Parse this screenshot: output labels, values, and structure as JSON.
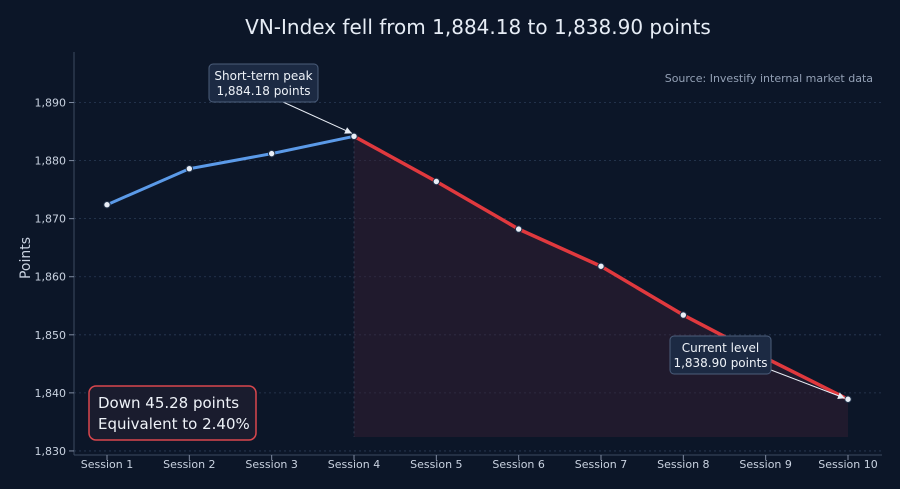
{
  "chart_data": {
    "type": "line",
    "title": "VN-Index fell from 1,884.18 to 1,838.90 points",
    "source_note": "Source: Investify internal market data",
    "ylabel": "Points",
    "xlabel": "",
    "ylim": [
      1829.3,
      1898.7
    ],
    "yticks": [
      1830,
      1840,
      1850,
      1860,
      1870,
      1880,
      1890
    ],
    "ytick_labels": [
      "1,830",
      "1,840",
      "1,850",
      "1,860",
      "1,870",
      "1,880",
      "1,890"
    ],
    "grid": true,
    "categories": [
      "Session 1",
      "Session 2",
      "Session 3",
      "Session 4",
      "Session 5",
      "Session 6",
      "Session 7",
      "Session 8",
      "Session 9",
      "Session 10"
    ],
    "values": [
      1872.4,
      1878.6,
      1881.2,
      1884.18,
      1876.4,
      1868.2,
      1861.8,
      1853.4,
      1846.0,
      1838.9
    ],
    "rise_color": "#5b9ae8",
    "fall_color": "#e0393e",
    "peak_index": 3,
    "annotations": {
      "peak": {
        "index": 3,
        "line1": "Short-term peak",
        "line2": "1,884.18 points"
      },
      "current": {
        "index": 9,
        "line1": "Current level",
        "line2": "1,838.90 points"
      }
    },
    "summary": {
      "line1": "Down 45.28 points",
      "line2": "Equivalent to 2.40%",
      "border_color": "#d9474d"
    }
  }
}
